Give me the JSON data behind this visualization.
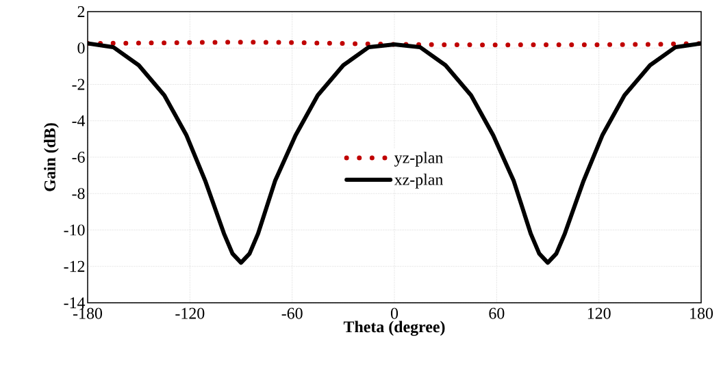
{
  "chart_data": {
    "type": "line",
    "xlabel": "Theta (degree)",
    "ylabel": "Gain (dB)",
    "xlim": [
      -180,
      180
    ],
    "xticks": [
      -180,
      -120,
      -60,
      0,
      60,
      120,
      180
    ],
    "ylim": [
      -14,
      2
    ],
    "yticks": [
      -14,
      -12,
      -10,
      -8,
      -6,
      -4,
      -2,
      0,
      2
    ],
    "grid": true,
    "legend": "center",
    "series": [
      {
        "name": "yz-plan",
        "color": "#c00000",
        "line_style": "dotted",
        "x": [
          -180,
          -150,
          -120,
          -90,
          -60,
          -30,
          0,
          30,
          60,
          90,
          120,
          150,
          180
        ],
        "values": [
          0.25,
          0.27,
          0.3,
          0.32,
          0.3,
          0.25,
          0.2,
          0.18,
          0.17,
          0.18,
          0.18,
          0.2,
          0.25
        ]
      },
      {
        "name": "xz-plan",
        "color": "#000000",
        "line_style": "solid",
        "x": [
          -180,
          -165,
          -150,
          -135,
          -122,
          -111,
          -100,
          -95,
          -90,
          -85,
          -80,
          -70,
          -58,
          -45,
          -30,
          -15,
          0,
          15,
          30,
          45,
          58,
          70,
          80,
          85,
          90,
          95,
          100,
          111,
          122,
          135,
          150,
          165,
          180
        ],
        "values": [
          0.25,
          0.05,
          -0.95,
          -2.6,
          -4.8,
          -7.3,
          -10.2,
          -11.3,
          -11.8,
          -11.3,
          -10.2,
          -7.3,
          -4.8,
          -2.6,
          -0.95,
          0.05,
          0.2,
          0.05,
          -0.95,
          -2.6,
          -4.8,
          -7.3,
          -10.2,
          -11.3,
          -11.8,
          -11.3,
          -10.2,
          -7.3,
          -4.8,
          -2.6,
          -0.95,
          0.05,
          0.25
        ]
      }
    ]
  }
}
